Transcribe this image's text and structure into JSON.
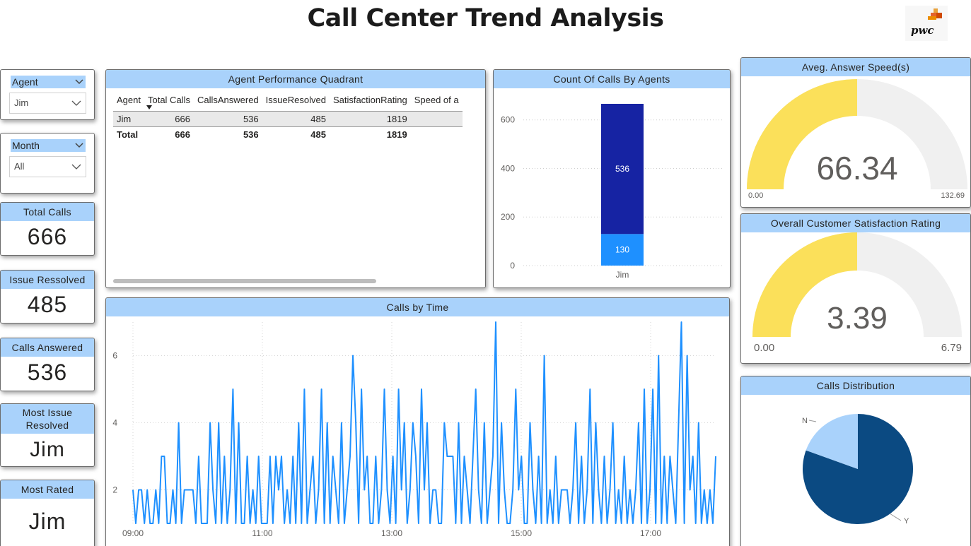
{
  "page": {
    "title": "Call Center Trend Analysis",
    "logo_text": "pwc"
  },
  "colors": {
    "header_bg": "#a9d2fb",
    "gauge_fill": "#fbe05a",
    "gauge_bg": "#f0f0f0",
    "bar_answered": "#1623a3",
    "bar_unanswered": "#1e90ff",
    "line": "#1e90ff",
    "pie_y": "#0b4a82",
    "pie_n": "#a9d2fb"
  },
  "slicers": {
    "agent": {
      "label": "Agent",
      "value": "Jim"
    },
    "month": {
      "label": "Month",
      "value": "All"
    }
  },
  "kpis": {
    "total_calls": {
      "label": "Total Calls",
      "value": "666"
    },
    "issue_resolved": {
      "label": "Issue Ressolved",
      "value": "485"
    },
    "calls_answered": {
      "label": "Calls Answered",
      "value": "536"
    },
    "most_issue_resolved": {
      "label": "Most Issue Resolved",
      "value": "Jim"
    },
    "most_rated": {
      "label": "Most Rated",
      "value": "Jim"
    }
  },
  "performance": {
    "title": "Agent Performance Quadrant",
    "columns": [
      "Agent",
      "Total Calls",
      "CallsAnswered",
      "IssueResolved",
      "SatisfactionRating",
      "Speed of a"
    ],
    "rows": [
      [
        "Jim",
        "666",
        "536",
        "485",
        "1819",
        ""
      ]
    ],
    "total": [
      "Total",
      "666",
      "536",
      "485",
      "1819",
      ""
    ]
  },
  "count_by_agents": {
    "title": "Count Of Calls By Agents",
    "chart_data": {
      "type": "bar",
      "stacked": true,
      "categories": [
        "Jim"
      ],
      "series": [
        {
          "values": [
            130
          ]
        },
        {
          "values": [
            536
          ]
        }
      ],
      "ylim": [
        0,
        666
      ],
      "yticks": [
        0,
        200,
        400,
        600
      ],
      "data_labels": [
        "130",
        "536"
      ]
    }
  },
  "gauges": {
    "answer_speed": {
      "title": "Aveg. Answer Speed(s)",
      "value": "66.34",
      "min": "0.00",
      "max": "132.69",
      "fraction": 0.5
    },
    "satisfaction": {
      "title": "Overall Customer Satisfaction Rating",
      "value": "3.39",
      "min": "0.00",
      "max": "6.79",
      "fraction": 0.5
    }
  },
  "calls_by_time": {
    "title": "Calls by Time",
    "chart_data": {
      "type": "line",
      "xlabels": [
        "09:00",
        "11:00",
        "13:00",
        "15:00",
        "17:00"
      ],
      "x_range": [
        "09:00",
        "18:00"
      ],
      "yticks": [
        2,
        4,
        6
      ],
      "ylim": [
        1,
        7
      ],
      "grid": true,
      "values": [
        2,
        1,
        2,
        2,
        1,
        2,
        1,
        1,
        2,
        1,
        3,
        3,
        1,
        1,
        2,
        1,
        4,
        1,
        2,
        2,
        2,
        2,
        1,
        3,
        1,
        1,
        1,
        4,
        2,
        1,
        4,
        1,
        3,
        1,
        2,
        5,
        1,
        4,
        1,
        1,
        3,
        1,
        2,
        1,
        3,
        1,
        1,
        1,
        3,
        1,
        3,
        2,
        3,
        1,
        2,
        1,
        3,
        1,
        4,
        1,
        5,
        1,
        2,
        3,
        1,
        2,
        5,
        1,
        4,
        1,
        3,
        2,
        1,
        4,
        1,
        2,
        3,
        6,
        4,
        1,
        5,
        2,
        3,
        1,
        1,
        3,
        1,
        2,
        5,
        2,
        1,
        3,
        1,
        5,
        2,
        4,
        1,
        2,
        4,
        3,
        1,
        5,
        2,
        4,
        1,
        2,
        2,
        1,
        1,
        4,
        3,
        3,
        3,
        1,
        4,
        1,
        3,
        2,
        1,
        3,
        5,
        2,
        1,
        4,
        1,
        2,
        3,
        7,
        1,
        4,
        2,
        1,
        1,
        2,
        5,
        2,
        3,
        1,
        1,
        4,
        2,
        1,
        3,
        1,
        6,
        1,
        2,
        1,
        3,
        1,
        2,
        2,
        2,
        1,
        2,
        4,
        1,
        3,
        1,
        2,
        5,
        1,
        4,
        2,
        1,
        3,
        1,
        2,
        4,
        1,
        2,
        1,
        3,
        1,
        2,
        1,
        2,
        4,
        1,
        5,
        1,
        2,
        5,
        1,
        6,
        1,
        3,
        1,
        3,
        2,
        1,
        4,
        7,
        1,
        6,
        2,
        3,
        1,
        4,
        1,
        2,
        1,
        2,
        1,
        3
      ]
    }
  },
  "distribution": {
    "title": "Calls Distribution",
    "chart_data": {
      "type": "pie",
      "labels": [
        "Y",
        "N"
      ],
      "values": [
        80.5,
        19.5
      ]
    }
  }
}
